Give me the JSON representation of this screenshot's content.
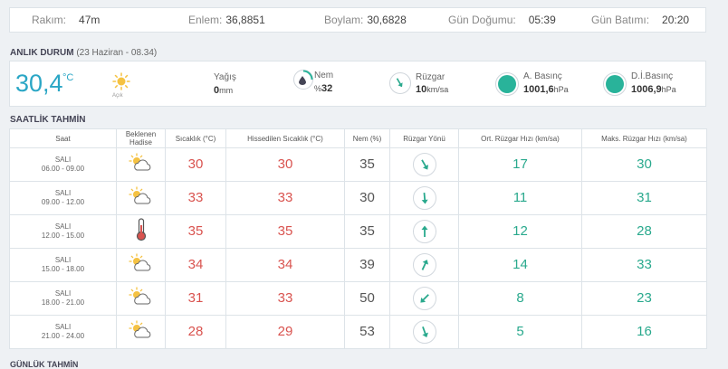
{
  "header": {
    "elevation_label": "Rakım:",
    "elevation_value": "47m",
    "latitude_label": "Enlem:",
    "latitude_value": "36,8851",
    "longitude_label": "Boylam:",
    "longitude_value": "30,6828",
    "sunrise_label": "Gün Doğumu:",
    "sunrise_value": "05:39",
    "sunset_label": "Gün Batımı:",
    "sunset_value": "20:20"
  },
  "current": {
    "section_title": "ANLIK DURUM",
    "section_subtitle": "(23 Haziran - 08.34)",
    "temperature": "30,4",
    "temperature_unit": "°C",
    "condition": "Açık",
    "condition_icon": "sun-icon",
    "precip_label": "Yağış",
    "precip_value": "0",
    "precip_unit": "mm",
    "humidity_label": "Nem",
    "humidity_prefix": "%",
    "humidity_value": "32",
    "wind_label": "Rüzgar",
    "wind_value": "10",
    "wind_unit": "km/sa",
    "pressure_label": "A. Basınç",
    "pressure_value": "1001,6",
    "pressure_unit": "hPa",
    "sea_pressure_label": "D.İ.Basınç",
    "sea_pressure_value": "1006,9",
    "sea_pressure_unit": "hPa",
    "colors": {
      "accent": "#2aa6c5",
      "gauge": "#29b39a"
    }
  },
  "hourly": {
    "section_title": "SAATLİK TAHMİN",
    "columns": [
      "Saat",
      "Beklenen Hadise",
      "Sıcaklık (°C)",
      "Hissedilen Sıcaklık (°C)",
      "Nem (%)",
      "Rüzgar Yönü",
      "Ort. Rüzgar Hızı (km/sa)",
      "Maks. Rüzgar Hızı (km/sa)"
    ],
    "rows": [
      {
        "day": "SALI",
        "time": "06.00 - 09.00",
        "icon": "partly-cloudy-icon",
        "temp": "30",
        "feels": "30",
        "humidity": "35",
        "wind_dir_deg": 150,
        "avg_wind": "17",
        "max_wind": "30"
      },
      {
        "day": "SALI",
        "time": "09.00 - 12.00",
        "icon": "partly-cloudy-icon",
        "temp": "33",
        "feels": "33",
        "humidity": "30",
        "wind_dir_deg": 175,
        "avg_wind": "11",
        "max_wind": "31"
      },
      {
        "day": "SALI",
        "time": "12.00 - 15.00",
        "icon": "thermometer-icon",
        "temp": "35",
        "feels": "35",
        "humidity": "35",
        "wind_dir_deg": 0,
        "avg_wind": "12",
        "max_wind": "28"
      },
      {
        "day": "SALI",
        "time": "15.00 - 18.00",
        "icon": "partly-cloudy-icon",
        "temp": "34",
        "feels": "34",
        "humidity": "39",
        "wind_dir_deg": 25,
        "avg_wind": "14",
        "max_wind": "33"
      },
      {
        "day": "SALI",
        "time": "18.00 - 21.00",
        "icon": "partly-cloudy-icon",
        "temp": "31",
        "feels": "33",
        "humidity": "50",
        "wind_dir_deg": 225,
        "avg_wind": "8",
        "max_wind": "23"
      },
      {
        "day": "SALI",
        "time": "21.00 - 24.00",
        "icon": "partly-cloudy-icon",
        "temp": "28",
        "feels": "29",
        "humidity": "53",
        "wind_dir_deg": 160,
        "avg_wind": "5",
        "max_wind": "16"
      }
    ]
  },
  "next_section_title": "GÜNLÜK TAHMİN"
}
